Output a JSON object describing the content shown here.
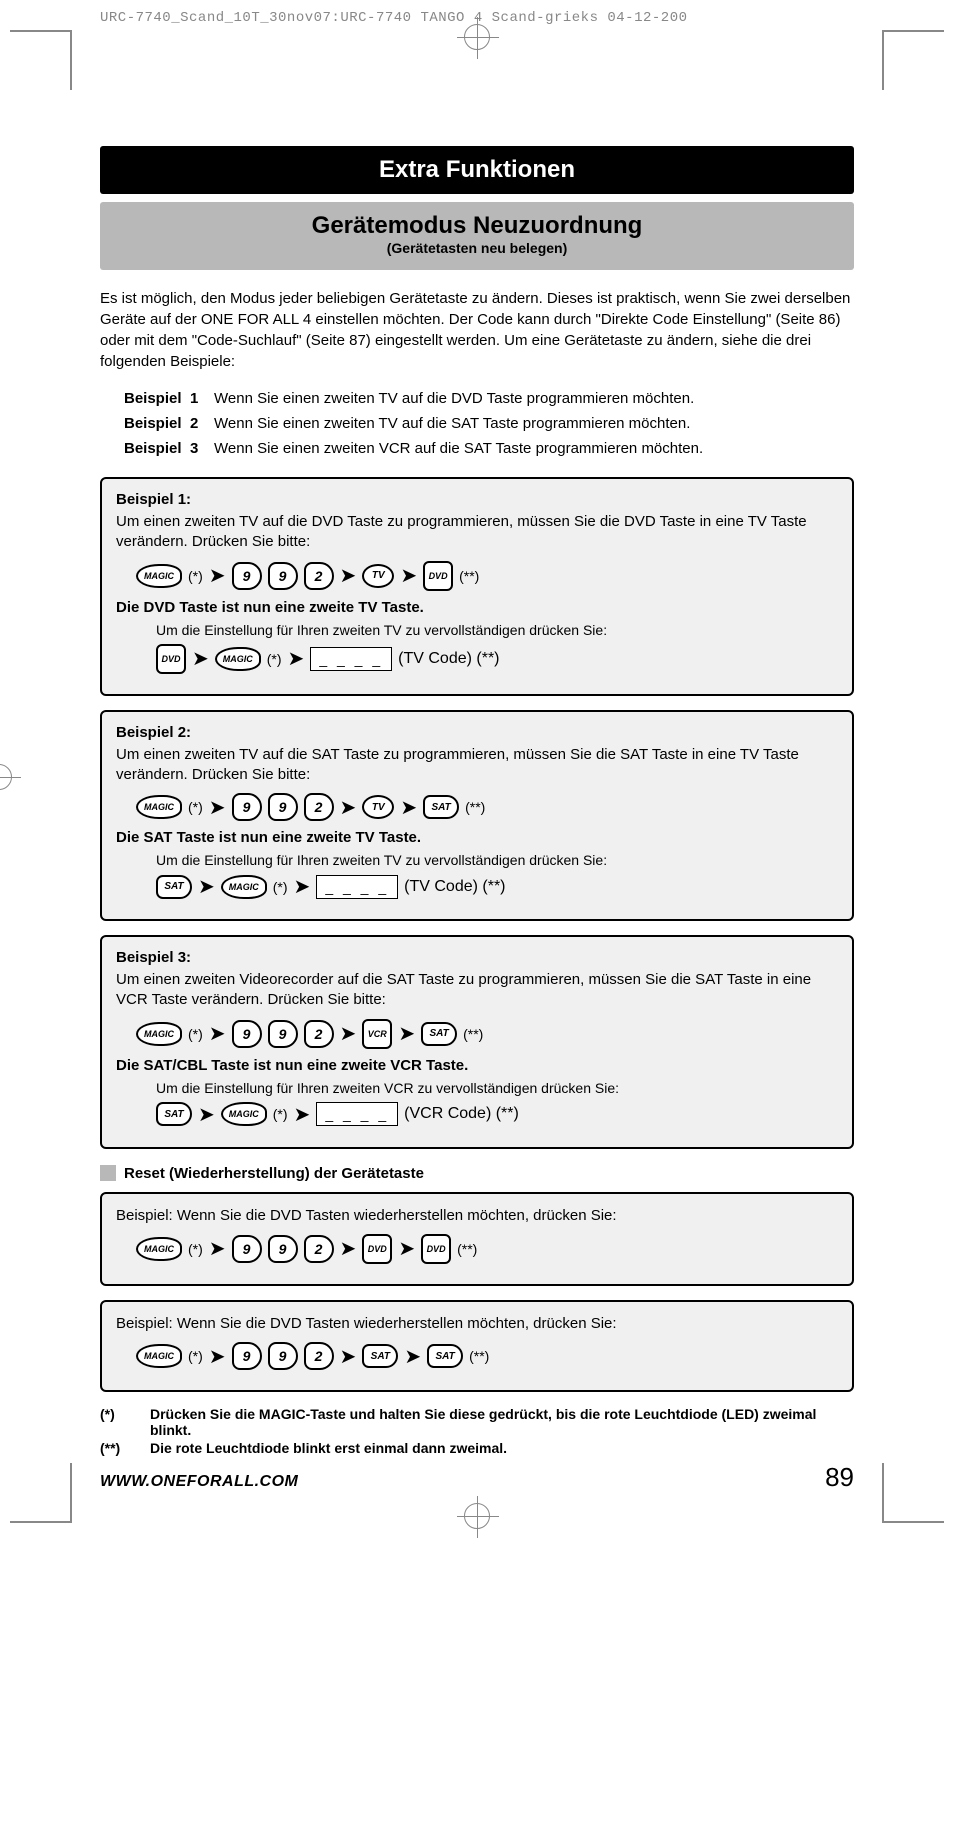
{
  "header_line": "URC-7740_Scand_10T_30nov07:URC-7740 TANGO 4 Scand-grieks  04-12-200",
  "black_bar": "Extra Funktionen",
  "grey_title": "Gerätemodus Neuzuordnung",
  "grey_sub": "(Gerätetasten neu belegen)",
  "intro": "Es ist möglich, den Modus jeder beliebigen Gerätetaste zu ändern. Dieses ist praktisch, wenn Sie zwei derselben Geräte auf der ONE FOR ALL 4 einstellen möchten. Der Code kann durch \"Direkte Code Einstellung\" (Seite 86) oder mit dem \"Code-Suchlauf\" (Seite 87) eingestellt werden. Um eine Gerätetaste zu ändern, siehe die drei folgenden Beispiele:",
  "examples": [
    {
      "label": "Beispiel",
      "num": "1",
      "text": "Wenn Sie einen zweiten TV auf die DVD Taste programmieren möchten."
    },
    {
      "label": "Beispiel",
      "num": "2",
      "text": "Wenn Sie einen zweiten TV auf die SAT Taste programmieren möchten."
    },
    {
      "label": "Beispiel",
      "num": "3",
      "text": "Wenn Sie einen zweiten VCR auf die SAT Taste programmieren möchten."
    }
  ],
  "box1": {
    "title": "Beispiel 1:",
    "text": "Um einen zweiten TV auf die DVD Taste zu programmieren, müssen Sie die DVD Taste in eine TV Taste verändern. Drücken Sie bitte:",
    "result": "Die DVD Taste ist nun eine zweite TV Taste.",
    "sub": "Um die Einstellung für Ihren zweiten TV zu vervollständigen drücken Sie:",
    "code_label": "(TV Code) (**)"
  },
  "box2": {
    "title": "Beispiel 2:",
    "text": "Um einen zweiten TV auf die SAT Taste zu programmieren, müssen Sie die SAT Taste in eine TV Taste verändern. Drücken Sie bitte:",
    "result": "Die SAT Taste ist nun eine zweite TV Taste.",
    "sub": "Um die Einstellung für Ihren zweiten TV zu vervollständigen drücken Sie:",
    "code_label": "(TV Code) (**)"
  },
  "box3": {
    "title": "Beispiel 3:",
    "text": "Um einen zweiten Videorecorder auf die SAT Taste zu programmieren, müssen Sie die SAT Taste in eine VCR Taste verändern. Drücken Sie bitte:",
    "result": "Die SAT/CBL Taste ist nun eine zweite VCR Taste.",
    "sub": "Um die Einstellung für Ihren zweiten VCR zu vervollständigen drücken Sie:",
    "code_label": "(VCR Code) (**)"
  },
  "reset_title": "Reset (Wiederherstellung) der Gerätetaste",
  "reset_box1": "Beispiel: Wenn Sie die DVD Tasten wiederherstellen möchten, drücken Sie:",
  "reset_box2": "Beispiel: Wenn Sie die DVD Tasten wiederherstellen möchten, drücken Sie:",
  "buttons": {
    "magic": "MAGIC",
    "nine": "9",
    "two": "2",
    "tv": "TV",
    "dvd": "DVD",
    "sat": "SAT",
    "vcr": "VCR",
    "star": "(*)",
    "dstar": "(**)",
    "code": "_ _ _ _",
    "arrow": "➤"
  },
  "footnotes": [
    {
      "mark": "(*)",
      "text": "Drücken Sie die MAGIC-Taste und halten Sie diese gedrückt, bis die rote Leuchtdiode (LED) zweimal blinkt."
    },
    {
      "mark": "(**)",
      "text": "Die rote Leuchtdiode blinkt erst einmal dann zweimal."
    }
  ],
  "url": "WWW.ONEFORALL.COM",
  "page": "89",
  "colors": {
    "black": "#000000",
    "grey_bg": "#b8b8b8",
    "box_bg": "#f0f0f0",
    "crop": "#888888"
  }
}
